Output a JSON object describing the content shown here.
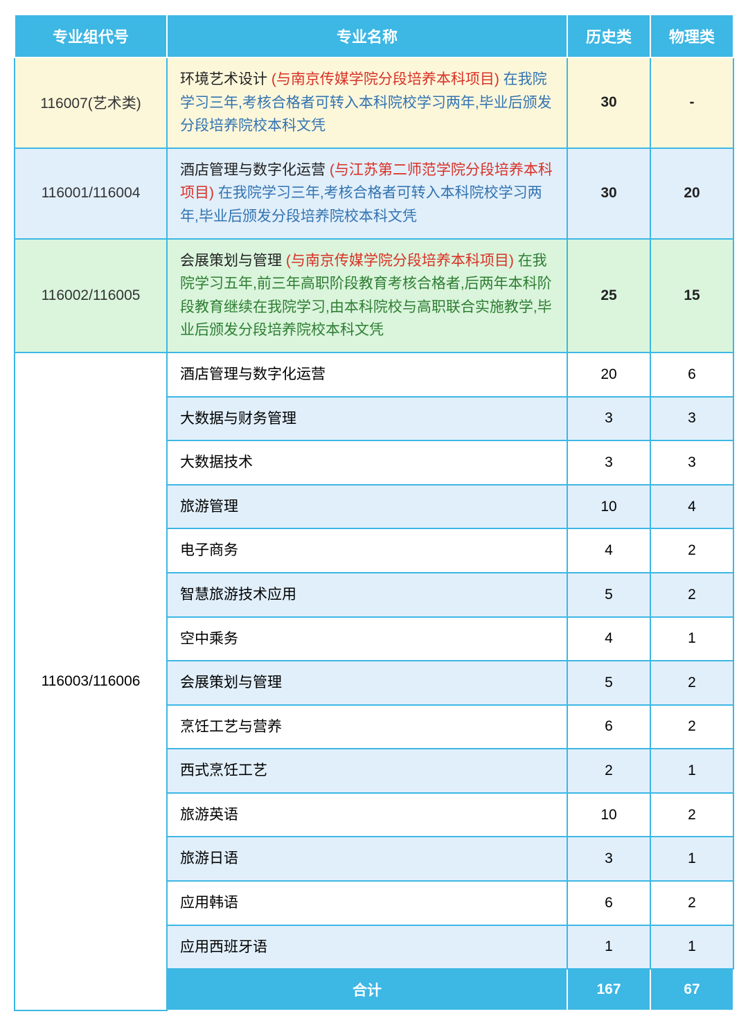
{
  "colors": {
    "primary": "#3db7e4",
    "row_yellow": "#fdf7da",
    "row_lblue": "#e1effb",
    "row_green": "#daf5dc",
    "row_white": "#ffffff",
    "text_red": "#d93025",
    "text_blue": "#3273b0",
    "text_green": "#2e7d32",
    "text_black": "#222222"
  },
  "headers": {
    "code": "专业组代号",
    "name": "专业名称",
    "history": "历史类",
    "physics": "物理类"
  },
  "special_rows": [
    {
      "code": "116007(艺术类)",
      "bg": "row-yellow",
      "title": "环境艺术设计",
      "red": "(与南京传媒学院分段培养本科项目)",
      "rest": "在我院学习三年,考核合格者可转入本科院校学习两年,毕业后颁发分段培养院校本科文凭",
      "rest_color": "note-blue",
      "history": "30",
      "physics": "-",
      "bold_nums": true
    },
    {
      "code": "116001/116004",
      "bg": "row-lblue",
      "title": "酒店管理与数字化运营",
      "red": "(与江苏第二师范学院分段培养本科项目)",
      "rest": "在我院学习三年,考核合格者可转入本科院校学习两年,毕业后颁发分段培养院校本科文凭",
      "rest_color": "note-blue",
      "history": "30",
      "physics": "20",
      "bold_nums": true
    },
    {
      "code": "116002/116005",
      "bg": "row-green",
      "title": "会展策划与管理",
      "red": "(与南京传媒学院分段培养本科项目)",
      "rest": "在我院学习五年,前三年高职阶段教育考核合格者,后两年本科阶段教育继续在我院学习,由本科院校与高职联合实施教学,毕业后颁发分段培养院校本科文凭",
      "rest_color": "note-green",
      "history": "25",
      "physics": "15",
      "bold_nums": true
    }
  ],
  "group_code": "116003/116006",
  "group_rows": [
    {
      "name": "酒店管理与数字化运营",
      "history": "20",
      "physics": "6"
    },
    {
      "name": "大数据与财务管理",
      "history": "3",
      "physics": "3"
    },
    {
      "name": "大数据技术",
      "history": "3",
      "physics": "3"
    },
    {
      "name": "旅游管理",
      "history": "10",
      "physics": "4"
    },
    {
      "name": "电子商务",
      "history": "4",
      "physics": "2"
    },
    {
      "name": "智慧旅游技术应用",
      "history": "5",
      "physics": "2"
    },
    {
      "name": "空中乘务",
      "history": "4",
      "physics": "1"
    },
    {
      "name": "会展策划与管理",
      "history": "5",
      "physics": "2"
    },
    {
      "name": "烹饪工艺与营养",
      "history": "6",
      "physics": "2"
    },
    {
      "name": "西式烹饪工艺",
      "history": "2",
      "physics": "1"
    },
    {
      "name": "旅游英语",
      "history": "10",
      "physics": "2"
    },
    {
      "name": "旅游日语",
      "history": "3",
      "physics": "1"
    },
    {
      "name": "应用韩语",
      "history": "6",
      "physics": "2"
    },
    {
      "name": "应用西班牙语",
      "history": "1",
      "physics": "1"
    }
  ],
  "total": {
    "label": "合计",
    "history": "167",
    "physics": "67"
  }
}
